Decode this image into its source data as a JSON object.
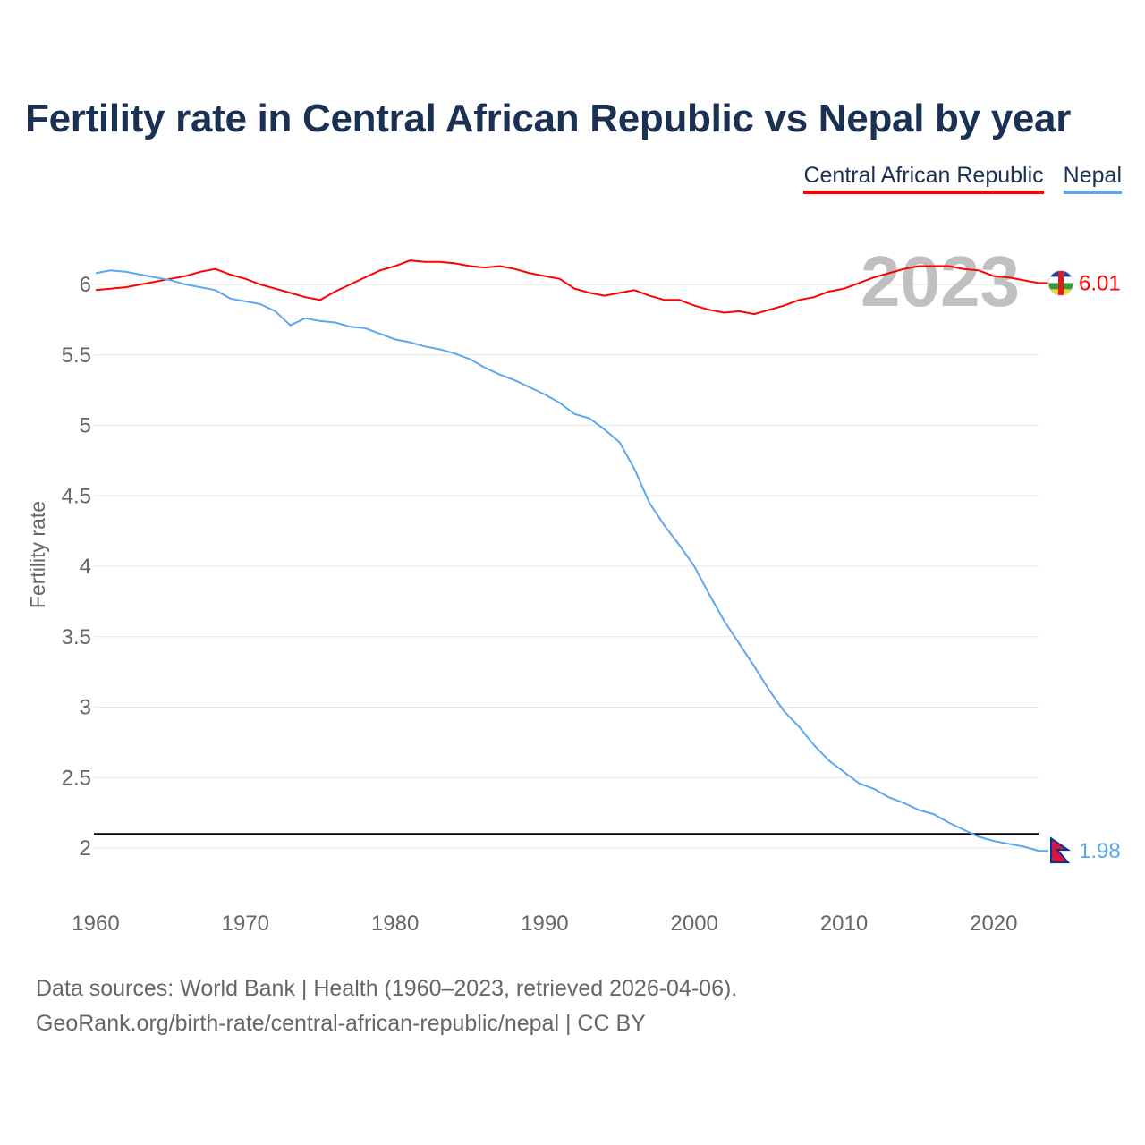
{
  "chart_data": {
    "type": "line",
    "title": "Fertility rate in Central African Republic vs Nepal by year",
    "xlabel": "",
    "ylabel": "Fertility rate",
    "xlim": [
      1960,
      2023
    ],
    "ylim": [
      1.7,
      6.35
    ],
    "x_ticks": [
      "1960",
      "1970",
      "1980",
      "1990",
      "2000",
      "2010",
      "2020"
    ],
    "y_ticks": [
      "2",
      "2.5",
      "3",
      "3.5",
      "4",
      "4.5",
      "5",
      "5.5",
      "6"
    ],
    "grid": true,
    "legend_position": "top-right",
    "year_label": "2023",
    "reference_line": 2.1,
    "x": [
      1960,
      1961,
      1962,
      1963,
      1964,
      1965,
      1966,
      1967,
      1968,
      1969,
      1970,
      1971,
      1972,
      1973,
      1974,
      1975,
      1976,
      1977,
      1978,
      1979,
      1980,
      1981,
      1982,
      1983,
      1984,
      1985,
      1986,
      1987,
      1988,
      1989,
      1990,
      1991,
      1992,
      1993,
      1994,
      1995,
      1996,
      1997,
      1998,
      1999,
      2000,
      2001,
      2002,
      2003,
      2004,
      2005,
      2006,
      2007,
      2008,
      2009,
      2010,
      2011,
      2012,
      2013,
      2014,
      2015,
      2016,
      2017,
      2018,
      2019,
      2020,
      2021,
      2022,
      2023
    ],
    "series": [
      {
        "name": "Central African Republic",
        "color": "#ff0000",
        "end_label": "6.01",
        "values": [
          5.96,
          5.97,
          5.98,
          6.0,
          6.02,
          6.04,
          6.06,
          6.09,
          6.11,
          6.07,
          6.04,
          6.0,
          5.97,
          5.94,
          5.91,
          5.89,
          5.95,
          6.0,
          6.05,
          6.1,
          6.13,
          6.17,
          6.16,
          6.16,
          6.15,
          6.13,
          6.12,
          6.13,
          6.11,
          6.08,
          6.06,
          6.04,
          5.97,
          5.94,
          5.92,
          5.94,
          5.96,
          5.92,
          5.89,
          5.89,
          5.85,
          5.82,
          5.8,
          5.81,
          5.79,
          5.82,
          5.85,
          5.89,
          5.91,
          5.95,
          5.97,
          6.01,
          6.05,
          6.08,
          6.11,
          6.13,
          6.13,
          6.13,
          6.11,
          6.1,
          6.06,
          6.05,
          6.03,
          6.01
        ]
      },
      {
        "name": "Nepal",
        "color": "#5ca8f0",
        "end_label": "1.98",
        "values": [
          6.08,
          6.1,
          6.09,
          6.07,
          6.05,
          6.03,
          6.0,
          5.98,
          5.96,
          5.9,
          5.88,
          5.86,
          5.81,
          5.71,
          5.76,
          5.74,
          5.73,
          5.7,
          5.69,
          5.65,
          5.61,
          5.59,
          5.56,
          5.54,
          5.51,
          5.47,
          5.41,
          5.36,
          5.32,
          5.27,
          5.22,
          5.16,
          5.08,
          5.05,
          4.97,
          4.88,
          4.69,
          4.45,
          4.29,
          4.15,
          4.0,
          3.8,
          3.61,
          3.45,
          3.29,
          3.12,
          2.97,
          2.86,
          2.73,
          2.62,
          2.54,
          2.46,
          2.42,
          2.36,
          2.32,
          2.27,
          2.24,
          2.18,
          2.13,
          2.08,
          2.05,
          2.03,
          2.01,
          1.98
        ]
      }
    ]
  },
  "source": {
    "line1": "Data sources: World Bank | Health (1960–2023, retrieved 2026-04-06).",
    "line2": "GeoRank.org/birth-rate/central-african-republic/nepal | CC BY"
  }
}
